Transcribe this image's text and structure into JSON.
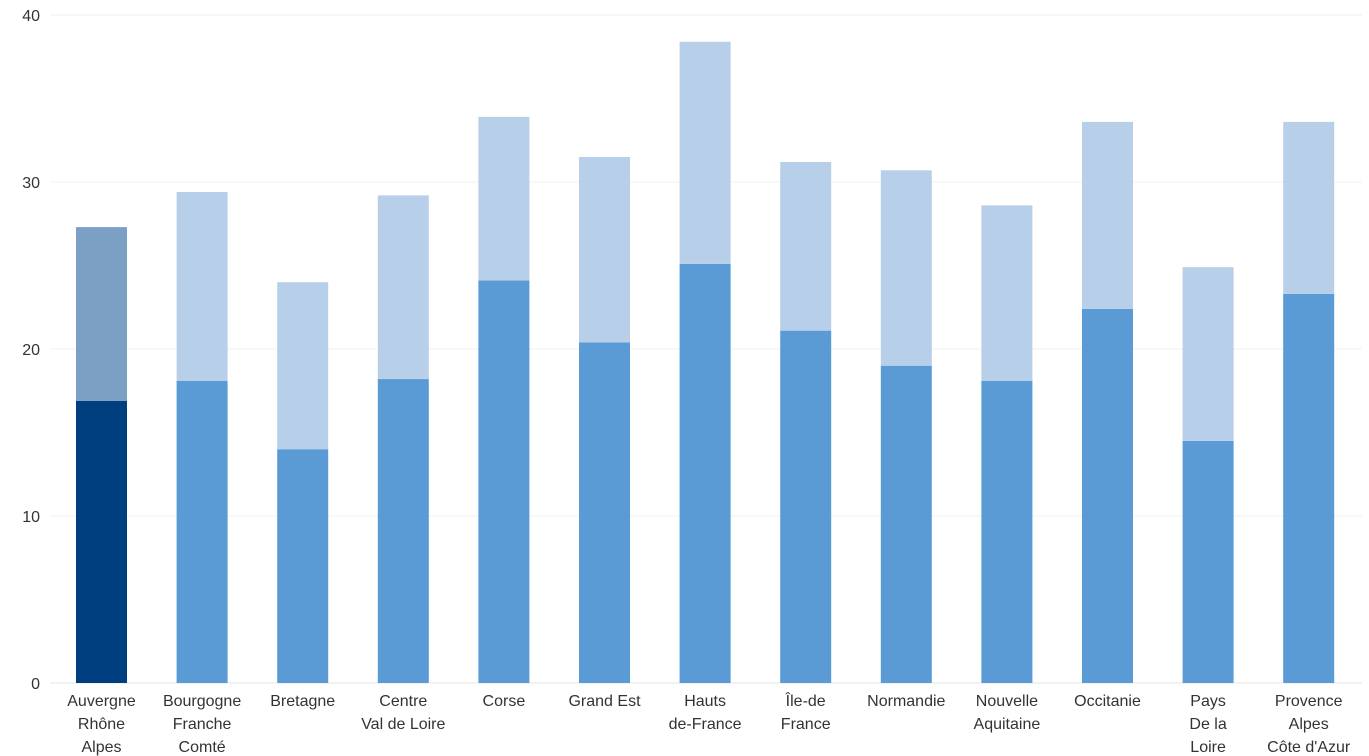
{
  "chart_data": {
    "type": "bar",
    "stacked": true,
    "categories": [
      [
        "Auvergne",
        "Rhône",
        "Alpes"
      ],
      [
        "Bourgogne",
        "Franche",
        "Comté"
      ],
      [
        "Bretagne"
      ],
      [
        "Centre",
        "Val de Loire"
      ],
      [
        "Corse"
      ],
      [
        "Grand Est"
      ],
      [
        "Hauts",
        "de-France"
      ],
      [
        "Île-de",
        "France"
      ],
      [
        "Normandie"
      ],
      [
        "Nouvelle",
        "Aquitaine"
      ],
      [
        "Occitanie"
      ],
      [
        "Pays",
        "De la",
        "Loire"
      ],
      [
        "Provence",
        "Alpes",
        "Côte d'Azur"
      ]
    ],
    "series": [
      {
        "values": [
          16.9,
          18.1,
          14.0,
          18.2,
          24.1,
          20.4,
          25.1,
          21.1,
          19.0,
          18.1,
          22.4,
          14.5,
          23.3
        ]
      },
      {
        "values": [
          10.4,
          11.3,
          10.0,
          11.0,
          9.8,
          11.1,
          13.3,
          10.1,
          11.7,
          10.5,
          11.2,
          10.4,
          10.3
        ]
      }
    ],
    "colors": {
      "lower": "#5b9bd5",
      "upper": "#b8cfe9",
      "highlight_lower": "#003f7f",
      "highlight_upper": "#7ba0c4"
    },
    "highlight_index": 0,
    "yticks": [
      0,
      10,
      20,
      30,
      40
    ],
    "ylim": [
      0,
      40
    ],
    "title": "",
    "xlabel": "",
    "ylabel": "",
    "grid": true,
    "legend": "none"
  }
}
